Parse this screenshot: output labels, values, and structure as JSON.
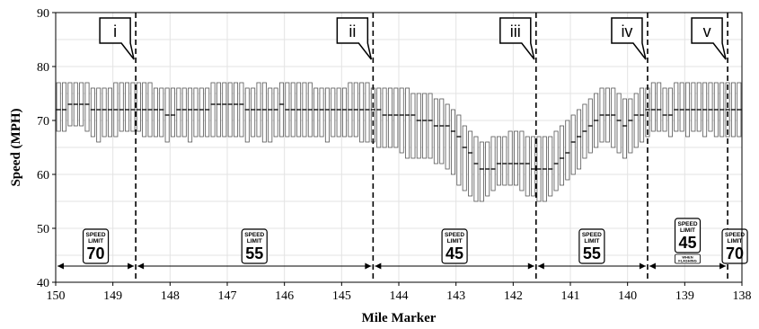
{
  "chart_data": {
    "type": "box",
    "xlabel": "Mile Marker",
    "ylabel": "Speed (MPH)",
    "xlim": [
      150,
      138
    ],
    "ylim": [
      40,
      90
    ],
    "x_ticks": [
      "150",
      "149",
      "148",
      "147",
      "146",
      "145",
      "144",
      "143",
      "142",
      "141",
      "140",
      "139",
      "138"
    ],
    "y_ticks": [
      "40",
      "50",
      "60",
      "70",
      "80",
      "90"
    ],
    "grid": true,
    "boundaries": [
      {
        "mile": 148.6,
        "label": "i"
      },
      {
        "mile": 144.45,
        "label": "ii"
      },
      {
        "mile": 141.6,
        "label": "iii"
      },
      {
        "mile": 139.65,
        "label": "iv"
      },
      {
        "mile": 138.25,
        "label": "v"
      }
    ],
    "zones": [
      {
        "from": 150,
        "to": 148.6,
        "sign": {
          "top": "SPEED",
          "mid": "LIMIT",
          "value": "70",
          "note": ""
        }
      },
      {
        "from": 148.6,
        "to": 144.45,
        "sign": {
          "top": "SPEED",
          "mid": "LIMIT",
          "value": "55",
          "note": ""
        }
      },
      {
        "from": 144.45,
        "to": 141.6,
        "sign": {
          "top": "SPEED",
          "mid": "LIMIT",
          "value": "45",
          "note": ""
        }
      },
      {
        "from": 141.6,
        "to": 139.65,
        "sign": {
          "top": "SPEED",
          "mid": "LIMIT",
          "value": "55",
          "note": ""
        }
      },
      {
        "from": 139.65,
        "to": 138.25,
        "sign": {
          "top": "SPEED",
          "mid": "LIMIT",
          "value": "45",
          "note": "WHEN FLASHING"
        }
      },
      {
        "from": 138.25,
        "to": 138,
        "sign": {
          "top": "SPEED",
          "mid": "LIMIT",
          "value": "70",
          "note": ""
        }
      }
    ],
    "x": [
      149.95,
      149.85,
      149.75,
      149.65,
      149.55,
      149.45,
      149.35,
      149.25,
      149.15,
      149.05,
      148.95,
      148.85,
      148.75,
      148.65,
      148.55,
      148.45,
      148.35,
      148.25,
      148.15,
      148.05,
      147.95,
      147.85,
      147.75,
      147.65,
      147.55,
      147.45,
      147.35,
      147.25,
      147.15,
      147.05,
      146.95,
      146.85,
      146.75,
      146.65,
      146.55,
      146.45,
      146.35,
      146.25,
      146.15,
      146.05,
      145.95,
      145.85,
      145.75,
      145.65,
      145.55,
      145.45,
      145.35,
      145.25,
      145.15,
      145.05,
      144.95,
      144.85,
      144.75,
      144.65,
      144.55,
      144.45,
      144.35,
      144.25,
      144.15,
      144.05,
      143.95,
      143.85,
      143.75,
      143.65,
      143.55,
      143.45,
      143.35,
      143.25,
      143.15,
      143.05,
      142.95,
      142.85,
      142.75,
      142.65,
      142.55,
      142.45,
      142.35,
      142.25,
      142.15,
      142.05,
      141.95,
      141.85,
      141.75,
      141.65,
      141.55,
      141.45,
      141.35,
      141.25,
      141.15,
      141.05,
      140.95,
      140.85,
      140.75,
      140.65,
      140.55,
      140.45,
      140.35,
      140.25,
      140.15,
      140.05,
      139.95,
      139.85,
      139.75,
      139.65,
      139.55,
      139.45,
      139.35,
      139.25,
      139.15,
      139.05,
      138.95,
      138.85,
      138.75,
      138.65,
      138.55,
      138.45,
      138.35,
      138.25,
      138.15,
      138.05
    ],
    "q1": [
      68,
      68,
      69,
      69,
      69,
      68,
      67,
      66,
      67,
      67,
      67,
      68,
      68,
      68,
      68,
      67,
      67,
      67,
      67,
      66,
      67,
      67,
      67,
      66,
      67,
      67,
      67,
      67,
      67,
      67,
      67,
      67,
      67,
      66,
      67,
      67,
      66,
      66,
      67,
      67,
      67,
      67,
      67,
      67,
      67,
      67,
      67,
      66,
      67,
      67,
      67,
      67,
      67,
      66,
      66,
      66,
      65,
      65,
      65,
      65,
      64,
      63,
      63,
      63,
      63,
      63,
      62,
      62,
      61,
      60,
      58,
      57,
      56,
      55,
      55,
      56,
      57,
      58,
      58,
      58,
      58,
      57,
      56,
      56,
      55,
      55,
      56,
      57,
      58,
      59,
      60,
      61,
      63,
      64,
      65,
      66,
      66,
      65,
      64,
      63,
      64,
      65,
      66,
      67,
      68,
      68,
      68,
      67,
      68,
      68,
      67,
      68,
      68,
      67,
      68,
      67,
      67,
      67,
      67,
      67
    ],
    "median": [
      72,
      72,
      73,
      73,
      73,
      73,
      72,
      72,
      72,
      72,
      72,
      72,
      72,
      72,
      72,
      72,
      72,
      72,
      72,
      71,
      71,
      72,
      72,
      72,
      72,
      72,
      72,
      73,
      73,
      73,
      73,
      73,
      73,
      72,
      72,
      72,
      72,
      72,
      72,
      73,
      72,
      72,
      72,
      72,
      72,
      72,
      72,
      72,
      72,
      72,
      72,
      72,
      72,
      72,
      72,
      72,
      72,
      71,
      71,
      71,
      71,
      71,
      71,
      70,
      70,
      70,
      69,
      69,
      69,
      68,
      67,
      65,
      64,
      62,
      61,
      61,
      61,
      62,
      62,
      62,
      62,
      62,
      62,
      61,
      61,
      61,
      61,
      62,
      63,
      64,
      66,
      67,
      68,
      69,
      70,
      71,
      71,
      71,
      70,
      69,
      70,
      71,
      71,
      72,
      72,
      72,
      71,
      71,
      72,
      72,
      72,
      72,
      72,
      72,
      72,
      72,
      72,
      72,
      72,
      72
    ],
    "q3": [
      77,
      77,
      77,
      77,
      77,
      77,
      76,
      76,
      76,
      76,
      77,
      77,
      77,
      77,
      77,
      77,
      77,
      76,
      76,
      76,
      76,
      76,
      76,
      76,
      76,
      76,
      76,
      77,
      77,
      77,
      77,
      77,
      77,
      76,
      76,
      77,
      77,
      76,
      76,
      77,
      77,
      77,
      77,
      77,
      77,
      76,
      76,
      76,
      76,
      76,
      76,
      77,
      77,
      77,
      77,
      76,
      76,
      76,
      76,
      76,
      76,
      76,
      75,
      75,
      75,
      75,
      74,
      74,
      73,
      72,
      71,
      69,
      68,
      67,
      66,
      66,
      67,
      67,
      67,
      68,
      68,
      68,
      67,
      67,
      67,
      67,
      67,
      68,
      69,
      70,
      71,
      72,
      73,
      74,
      75,
      76,
      76,
      76,
      75,
      74,
      74,
      75,
      76,
      76,
      77,
      77,
      76,
      76,
      77,
      77,
      77,
      77,
      77,
      77,
      77,
      77,
      77,
      77,
      77,
      77
    ]
  }
}
